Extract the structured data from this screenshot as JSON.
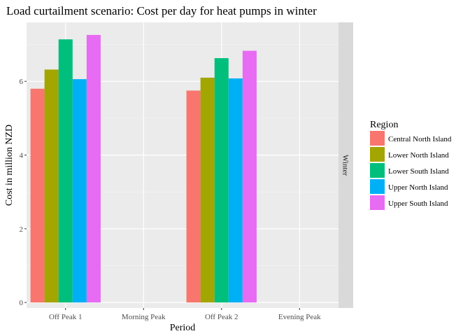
{
  "chart_data": {
    "type": "bar",
    "title": "Load curtailment scenario: Cost per day for heat pumps in winter",
    "xlabel": "Period",
    "ylabel": "Cost in million NZD",
    "facet_label": "Winter",
    "categories": [
      "Off Peak 1",
      "Morning Peak",
      "Off Peak 2",
      "Evening Peak"
    ],
    "yticks": [
      "0",
      "2",
      "4",
      "6"
    ],
    "ylim": [
      -0.15,
      7.6
    ],
    "grid": true,
    "legend_position": "right",
    "legend_title": "Region",
    "series": [
      {
        "name": "Central North Island",
        "color": "#F8766D",
        "values": [
          5.8,
          null,
          5.75,
          null
        ]
      },
      {
        "name": "Lower North Island",
        "color": "#A3A500",
        "values": [
          6.32,
          null,
          6.1,
          null
        ]
      },
      {
        "name": "Lower South Island",
        "color": "#00BF7D",
        "values": [
          7.14,
          null,
          6.63,
          null
        ]
      },
      {
        "name": "Upper North Island",
        "color": "#00B0F6",
        "values": [
          6.06,
          null,
          6.08,
          null
        ]
      },
      {
        "name": "Upper South Island",
        "color": "#E76BF3",
        "values": [
          7.26,
          null,
          6.83,
          null
        ]
      }
    ]
  }
}
